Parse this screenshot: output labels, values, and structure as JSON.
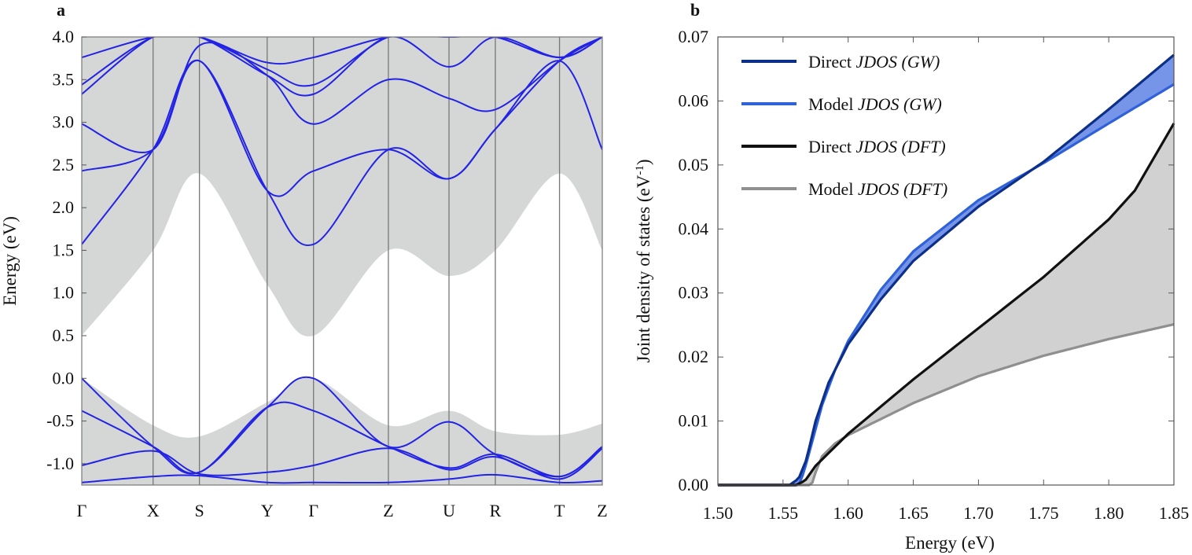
{
  "panels": {
    "a": {
      "label": "a"
    },
    "b": {
      "label": "b"
    }
  },
  "chart_data": [
    {
      "type": "line",
      "title": "",
      "panel": "a",
      "ylabel": "Energy (eV)",
      "xlabel": "",
      "ylim": [
        -1.25,
        4.0
      ],
      "yticks": [
        "4.0",
        "3.5",
        "3.0",
        "2.5",
        "2.0",
        "1.5",
        "1.0",
        "0.5",
        "0.0",
        "-0.5",
        "-1.0"
      ],
      "ytick_values": [
        4.0,
        3.5,
        3.0,
        2.5,
        2.0,
        1.5,
        1.0,
        0.5,
        0.0,
        -0.5,
        -1.0
      ],
      "kpoint_labels": [
        "Γ",
        "X",
        "S",
        "Y",
        "Γ",
        "Z",
        "U",
        "R",
        "T",
        "Z"
      ],
      "kpoint_positions": [
        0,
        1.0,
        1.65,
        2.6,
        3.25,
        4.3,
        5.15,
        5.8,
        6.7,
        7.3
      ],
      "colors": {
        "bands": "#2323e6",
        "envelope": "#d4d7d5",
        "grid": "#777777"
      },
      "envelope": {
        "conduction_min": [
          0.5,
          1.5,
          2.4,
          1.1,
          0.5,
          1.5,
          1.2,
          1.5,
          2.4,
          1.5
        ],
        "valence_max": [
          0.0,
          -0.55,
          -0.68,
          -0.28,
          0.0,
          -0.55,
          -0.38,
          -0.62,
          -0.66,
          -0.53
        ]
      },
      "bands": [
        {
          "name": "cb1",
          "y": [
            1.57,
            2.68,
            3.72,
            2.2,
            1.57,
            2.68,
            2.34,
            2.92,
            3.72,
            4.0
          ]
        },
        {
          "name": "cb2",
          "y": [
            2.43,
            2.68,
            3.72,
            2.2,
            2.43,
            2.68,
            2.34,
            2.92,
            3.72,
            2.68
          ]
        },
        {
          "name": "cb3",
          "y": [
            2.98,
            2.68,
            3.9,
            3.55,
            2.98,
            3.5,
            3.28,
            3.15,
            3.72,
            4.0
          ]
        },
        {
          "name": "cb4",
          "y": [
            3.33,
            4.0,
            4.0,
            3.55,
            3.33,
            4.0,
            3.65,
            4.0,
            3.76,
            4.0
          ]
        },
        {
          "name": "cb5",
          "y": [
            3.44,
            4.0,
            4.0,
            3.62,
            3.44,
            4.0,
            4.0,
            4.0,
            3.76,
            4.0
          ]
        },
        {
          "name": "cb6",
          "y": [
            3.76,
            4.0,
            4.0,
            3.7,
            3.76,
            4.0,
            4.0,
            4.0,
            3.76,
            4.0
          ]
        },
        {
          "name": "vb1",
          "y": [
            0.0,
            -0.8,
            -1.1,
            -0.34,
            0.0,
            -0.8,
            -0.51,
            -0.89,
            -1.15,
            -0.8
          ]
        },
        {
          "name": "vb2",
          "y": [
            -0.38,
            -0.8,
            -1.1,
            -0.34,
            -0.38,
            -0.8,
            -1.05,
            -0.89,
            -1.15,
            -0.8
          ]
        },
        {
          "name": "vb3",
          "y": [
            -1.02,
            -0.85,
            -1.12,
            -1.1,
            -1.02,
            -0.82,
            -1.07,
            -0.92,
            -1.18,
            -0.82
          ]
        },
        {
          "name": "vb4",
          "y": [
            -1.22,
            -1.15,
            -1.14,
            -1.22,
            -1.22,
            -1.22,
            -1.18,
            -1.13,
            -1.22,
            -1.2
          ]
        }
      ]
    },
    {
      "type": "line",
      "title": "",
      "panel": "b",
      "xlabel": "Energy (eV)",
      "ylabel": "Joint density of states (eV",
      "ylabel_sup": "-1",
      "ylabel_close": ")",
      "xlim": [
        1.5,
        1.85
      ],
      "ylim": [
        0.0,
        0.07
      ],
      "xticks": [
        "1.50",
        "1.55",
        "1.60",
        "1.65",
        "1.70",
        "1.75",
        "1.80",
        "1.85"
      ],
      "xtick_values": [
        1.5,
        1.55,
        1.6,
        1.65,
        1.7,
        1.75,
        1.8,
        1.85
      ],
      "yticks": [
        "0.00",
        "0.01",
        "0.02",
        "0.03",
        "0.04",
        "0.05",
        "0.06",
        "0.07"
      ],
      "ytick_values": [
        0.0,
        0.01,
        0.02,
        0.03,
        0.04,
        0.05,
        0.06,
        0.07
      ],
      "legend_position": "top-left",
      "series": [
        {
          "name": "Direct",
          "name_italic": "JDOS (GW)",
          "color": "#0c2f8a",
          "x": [
            1.5,
            1.555,
            1.562,
            1.568,
            1.575,
            1.585,
            1.6,
            1.625,
            1.65,
            1.7,
            1.75,
            1.8,
            1.85
          ],
          "y": [
            0.0,
            0.0,
            0.001,
            0.004,
            0.01,
            0.016,
            0.022,
            0.029,
            0.035,
            0.0435,
            0.0505,
            0.0587,
            0.0672
          ]
        },
        {
          "name": "Model",
          "name_italic": "JDOS (GW)",
          "color": "#2f62d8",
          "x": [
            1.5,
            1.562,
            1.566,
            1.572,
            1.58,
            1.59,
            1.6,
            1.625,
            1.65,
            1.7,
            1.75,
            1.8,
            1.85
          ],
          "y": [
            0.0,
            0.0,
            0.002,
            0.0065,
            0.0125,
            0.018,
            0.0225,
            0.0305,
            0.0365,
            0.0445,
            0.0503,
            0.0565,
            0.0626
          ]
        },
        {
          "name": "Direct",
          "name_italic": "JDOS (DFT)",
          "color": "#111111",
          "x": [
            1.5,
            1.56,
            1.567,
            1.575,
            1.59,
            1.6,
            1.65,
            1.7,
            1.75,
            1.8,
            1.82,
            1.85
          ],
          "y": [
            0.0,
            0.0,
            0.0007,
            0.003,
            0.006,
            0.008,
            0.0165,
            0.0245,
            0.0325,
            0.0415,
            0.046,
            0.0565
          ]
        },
        {
          "name": "Model",
          "name_italic": "JDOS (DFT)",
          "color": "#8f8f8f",
          "x": [
            1.5,
            1.572,
            1.574,
            1.58,
            1.59,
            1.6,
            1.65,
            1.7,
            1.75,
            1.8,
            1.85
          ],
          "y": [
            0.0,
            0.0,
            0.0015,
            0.0045,
            0.0065,
            0.0078,
            0.0128,
            0.017,
            0.0202,
            0.0228,
            0.0251
          ]
        }
      ],
      "fills": [
        {
          "between": [
            "Direct JDOS (GW)",
            "Model JDOS (GW)"
          ],
          "color": "#4a72e0"
        },
        {
          "between": [
            "Direct JDOS (DFT)",
            "Model JDOS (DFT)"
          ],
          "color": "#cfcfcf"
        }
      ]
    }
  ]
}
